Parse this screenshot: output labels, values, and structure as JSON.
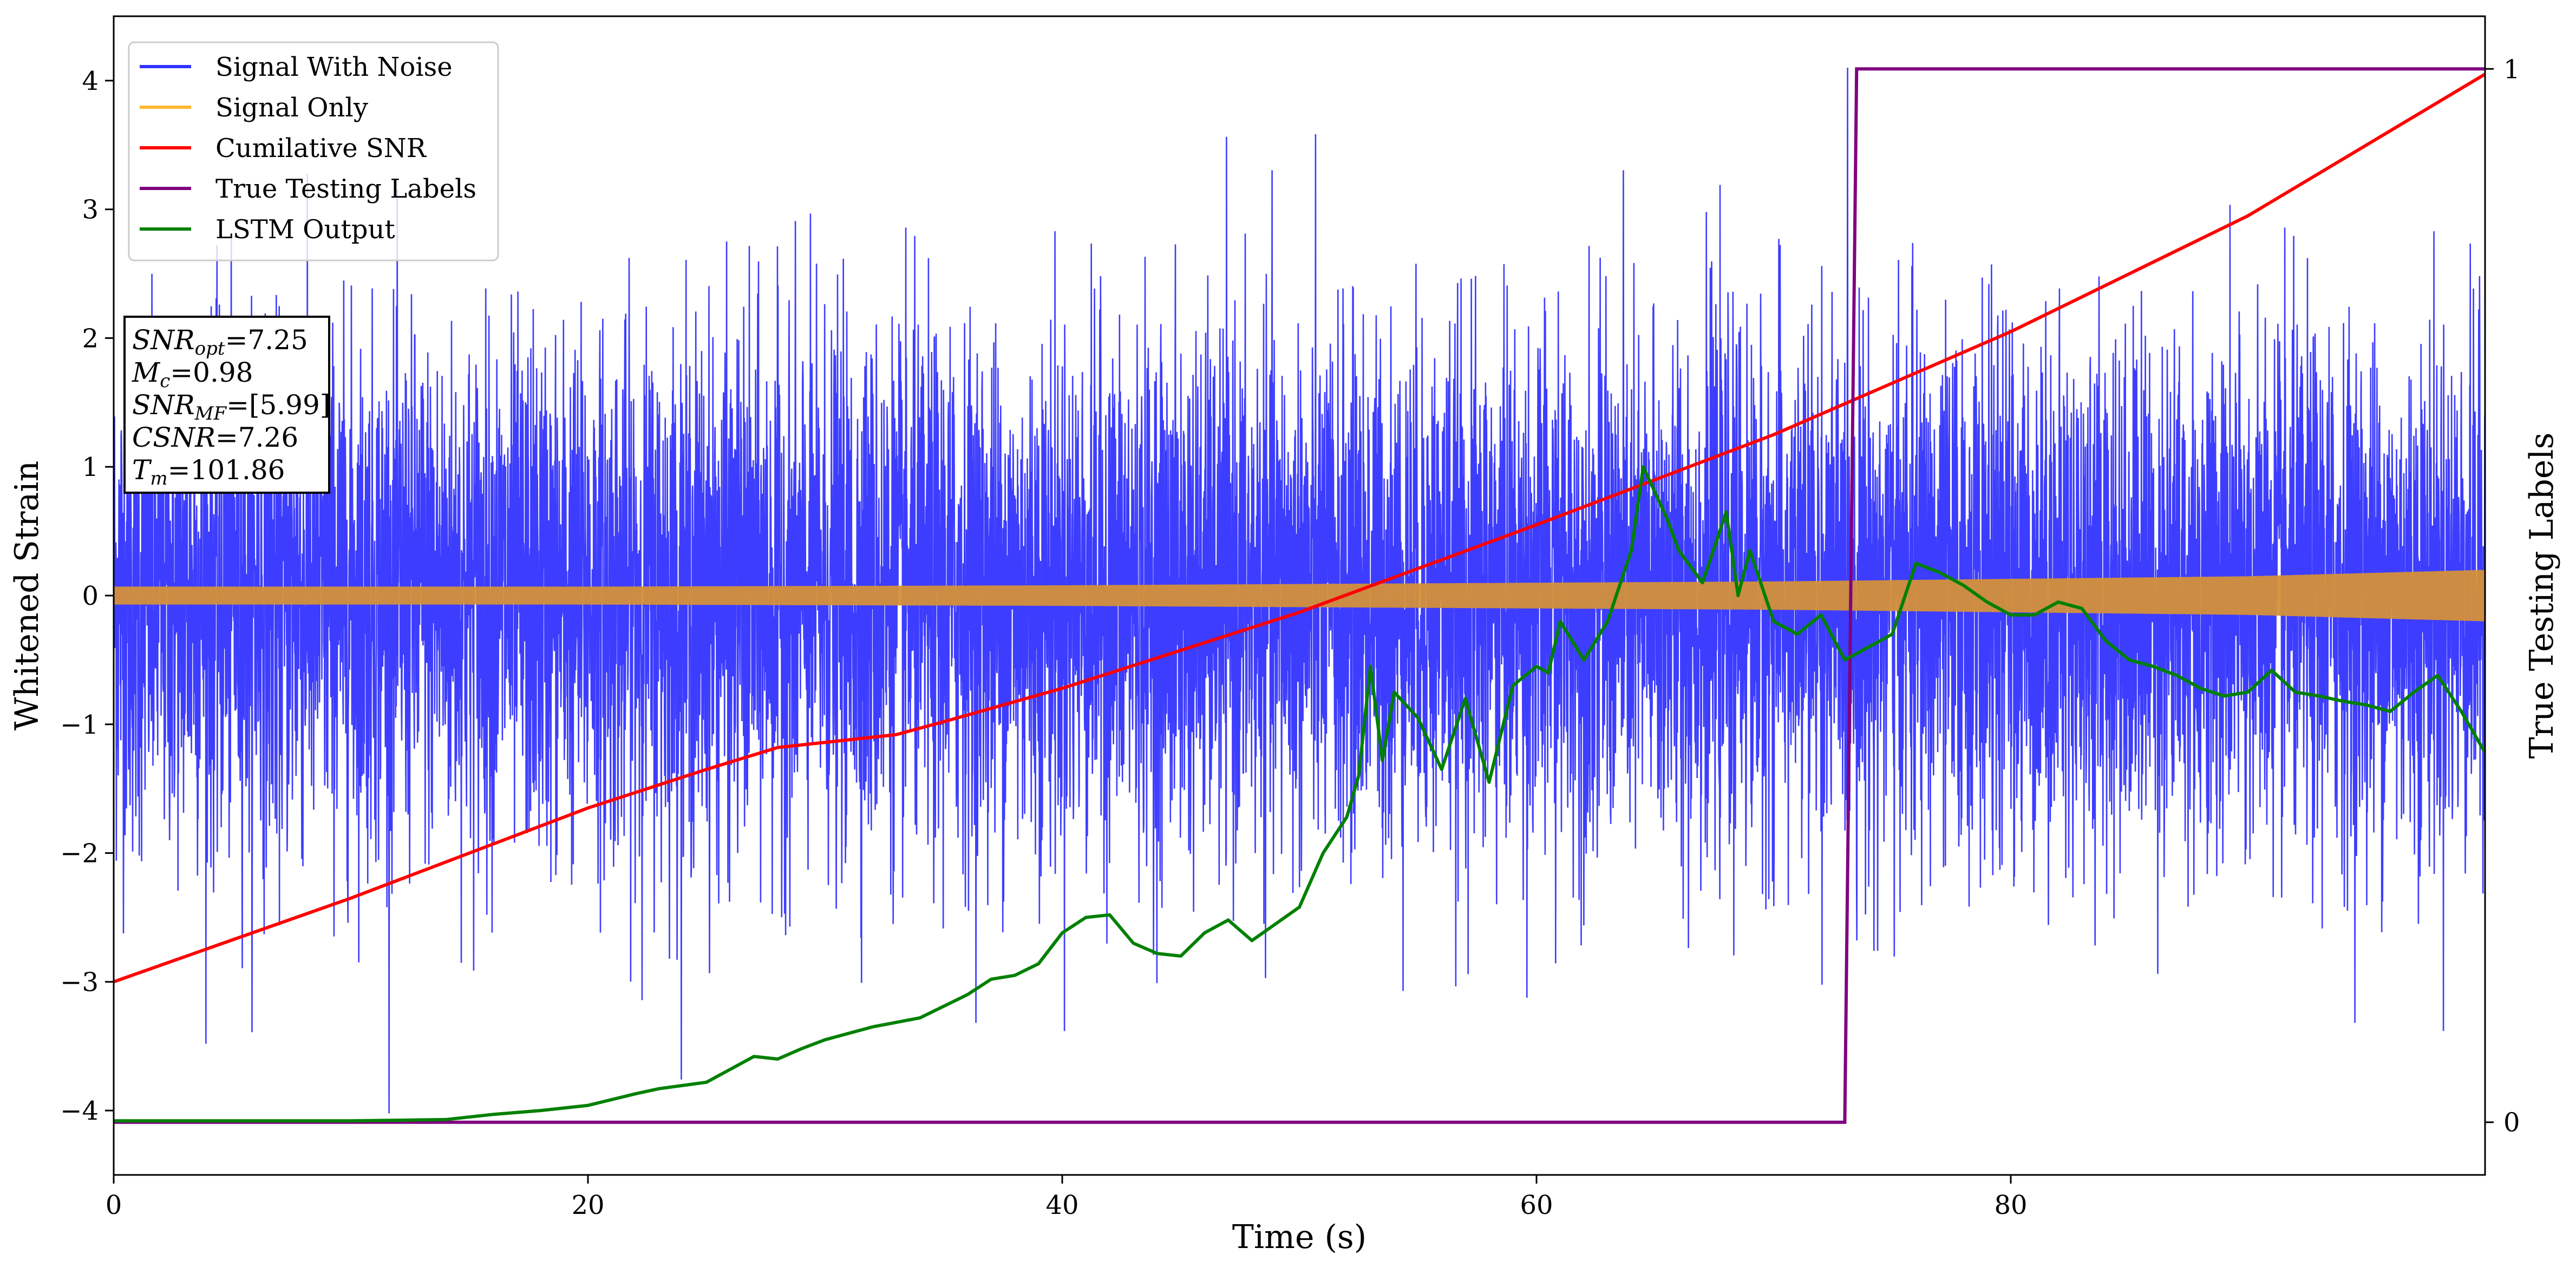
{
  "chart_data": {
    "type": "line",
    "xlabel": "Time (s)",
    "ylabel": "Whitened Strain",
    "ylabel_right": "True Testing Labels",
    "xlim": [
      0,
      100
    ],
    "ylim": [
      -4.5,
      4.5
    ],
    "ylim_right": [
      -0.05,
      1.05
    ],
    "xticks": [
      0,
      20,
      40,
      60,
      80
    ],
    "yticks": [
      -4,
      -3,
      -2,
      -1,
      0,
      1,
      2,
      3,
      4
    ],
    "yticks_right": [
      0,
      1
    ],
    "grid": false,
    "legend_position": "top-left",
    "annotation": [
      {
        "base": "SNR",
        "sub": "opt",
        "rest": "=7.25"
      },
      {
        "base": "M",
        "sub": "c",
        "rest": "=0.98"
      },
      {
        "base": "SNR",
        "sub": "MF",
        "rest": "=[5.99]"
      },
      {
        "base": "CSNR",
        "sub": "",
        "rest": "=7.26"
      },
      {
        "base": "T",
        "sub": "m",
        "rest": "=101.86"
      }
    ],
    "series": [
      {
        "name": "Signal With Noise",
        "color": "#3333ff",
        "axis": "left",
        "kind": "noise",
        "std": 1.0,
        "spike_max": 4.1,
        "spike_min": -4.05
      },
      {
        "name": "Signal Only",
        "color": "#ffb732",
        "axis": "left",
        "kind": "band",
        "x": [
          0,
          20,
          40,
          50,
          60,
          70,
          80,
          90,
          100
        ],
        "amplitude": [
          0.07,
          0.07,
          0.08,
          0.09,
          0.1,
          0.11,
          0.13,
          0.15,
          0.2
        ]
      },
      {
        "name": "Cumilative SNR",
        "color": "#ff0000",
        "axis": "left",
        "x": [
          0,
          10,
          20,
          25,
          28,
          30,
          33,
          35,
          40,
          50,
          60,
          70,
          80,
          90,
          100
        ],
        "y": [
          -3.0,
          -2.35,
          -1.65,
          -1.35,
          -1.18,
          -1.14,
          -1.08,
          -0.98,
          -0.72,
          -0.13,
          0.55,
          1.25,
          2.05,
          2.95,
          4.05
        ]
      },
      {
        "name": "True Testing Labels",
        "color": "#800080",
        "axis": "right",
        "x": [
          0,
          73.0,
          73.5,
          100
        ],
        "y": [
          0,
          0,
          1,
          1
        ]
      },
      {
        "name": "LSTM Output",
        "color": "#008000",
        "axis": "left",
        "x": [
          0,
          10,
          14,
          16,
          18,
          20,
          22,
          23,
          25,
          27,
          28,
          29,
          30,
          32,
          34,
          36,
          37,
          38,
          39,
          40,
          41,
          42,
          43,
          44,
          45,
          46,
          47,
          48,
          49,
          50,
          51,
          52,
          52.5,
          53,
          53.5,
          54,
          55,
          56,
          57,
          58,
          59,
          60,
          60.5,
          61,
          62,
          63,
          64,
          64.5,
          65,
          65.5,
          66,
          67,
          68,
          68.5,
          69,
          70,
          71,
          72,
          73,
          74,
          75,
          76,
          77,
          78,
          79,
          80,
          81,
          82,
          83,
          84,
          85,
          86,
          87,
          88,
          89,
          90,
          91,
          92,
          93,
          94,
          95,
          96,
          97,
          98,
          99,
          100
        ],
        "y": [
          -4.08,
          -4.08,
          -4.07,
          -4.03,
          -4.0,
          -3.96,
          -3.87,
          -3.83,
          -3.78,
          -3.58,
          -3.6,
          -3.52,
          -3.45,
          -3.35,
          -3.28,
          -3.1,
          -2.98,
          -2.95,
          -2.86,
          -2.62,
          -2.5,
          -2.48,
          -2.7,
          -2.78,
          -2.8,
          -2.62,
          -2.52,
          -2.68,
          -2.55,
          -2.42,
          -2.0,
          -1.72,
          -1.4,
          -0.55,
          -1.28,
          -0.75,
          -0.95,
          -1.35,
          -0.8,
          -1.45,
          -0.7,
          -0.55,
          -0.6,
          -0.2,
          -0.5,
          -0.2,
          0.35,
          1.0,
          0.8,
          0.6,
          0.35,
          0.1,
          0.65,
          0.0,
          0.35,
          -0.2,
          -0.3,
          -0.15,
          -0.5,
          -0.4,
          -0.3,
          0.25,
          0.18,
          0.08,
          -0.05,
          -0.15,
          -0.15,
          -0.05,
          -0.1,
          -0.35,
          -0.5,
          -0.55,
          -0.62,
          -0.72,
          -0.78,
          -0.75,
          -0.58,
          -0.75,
          -0.78,
          -0.82,
          -0.85,
          -0.9,
          -0.75,
          -0.62,
          -0.9,
          -1.22
        ]
      }
    ]
  }
}
